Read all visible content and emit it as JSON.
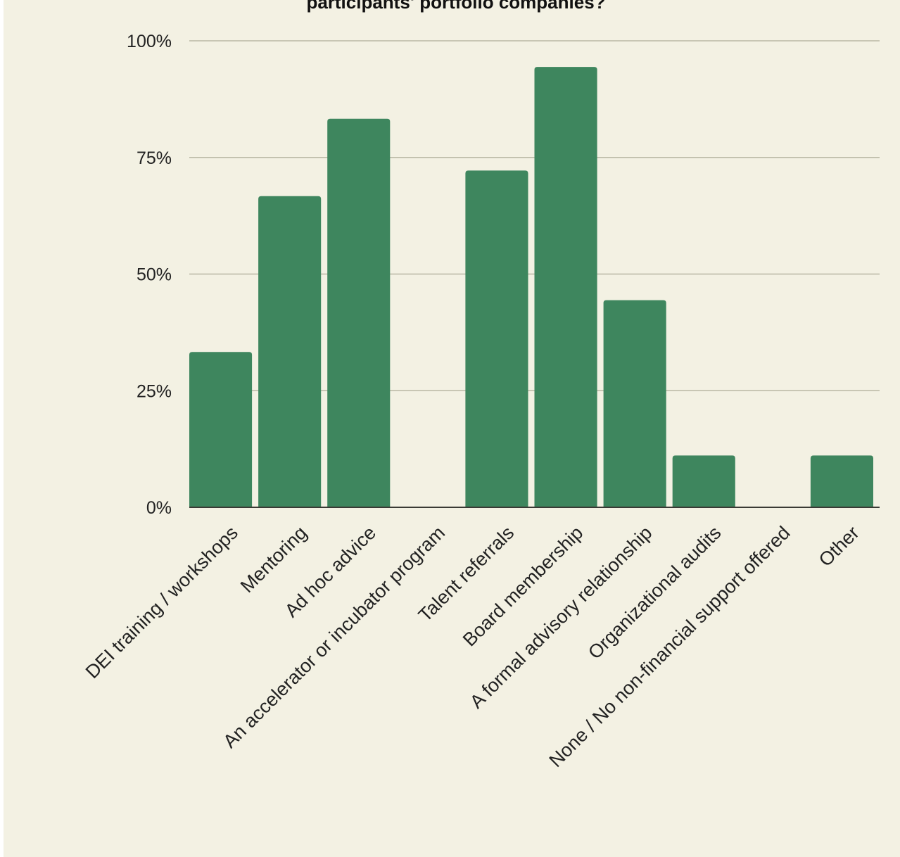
{
  "chart_data": {
    "type": "bar",
    "title": "participants' portfolio companies?",
    "xlabel": "",
    "ylabel": "",
    "ylim": [
      0,
      100
    ],
    "yticks": [
      0,
      25,
      50,
      75,
      100
    ],
    "ytick_labels": [
      "0%",
      "25%",
      "50%",
      "75%",
      "100%"
    ],
    "grid": true,
    "bar_color": "#3e865e",
    "background_color": "#f3f1e3",
    "categories": [
      "DEI training / workshops",
      "Mentoring",
      "Ad hoc advice",
      "An accelerator or incubator program",
      "Talent referrals",
      "Board membership",
      "A formal advisory relationship",
      "Organizational audits",
      "None / No non-financial support offered",
      "Other"
    ],
    "values": [
      33.3,
      66.7,
      83.3,
      0,
      72.2,
      94.4,
      44.4,
      11.1,
      0,
      11.1
    ]
  }
}
